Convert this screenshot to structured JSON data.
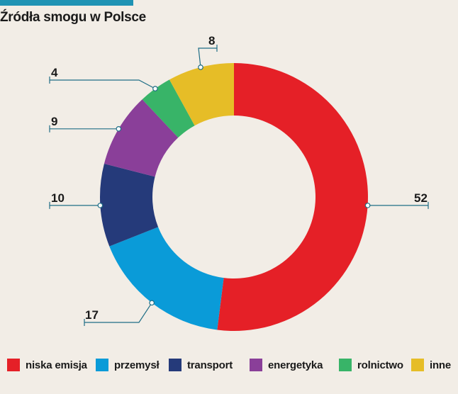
{
  "header": {
    "title": "Źródła smogu w Polsce"
  },
  "colors": {
    "accent_bar": "#1f93b4",
    "background": "#f2ede6"
  },
  "chart_data": {
    "type": "pie",
    "subtype": "donut",
    "title": "Źródła smogu w Polsce",
    "categories": [
      "niska emisja",
      "przemysł",
      "transport",
      "energetyka",
      "rolnictwo",
      "inne"
    ],
    "values": [
      52,
      17,
      10,
      9,
      4,
      8
    ],
    "colors": [
      "#e52027",
      "#0a9bd8",
      "#253a7a",
      "#8a3f99",
      "#38b468",
      "#e6bd27"
    ],
    "value_labels": [
      "52",
      "17",
      "10",
      "9",
      "4",
      "8"
    ],
    "legend": {
      "placement": "bottom"
    }
  }
}
